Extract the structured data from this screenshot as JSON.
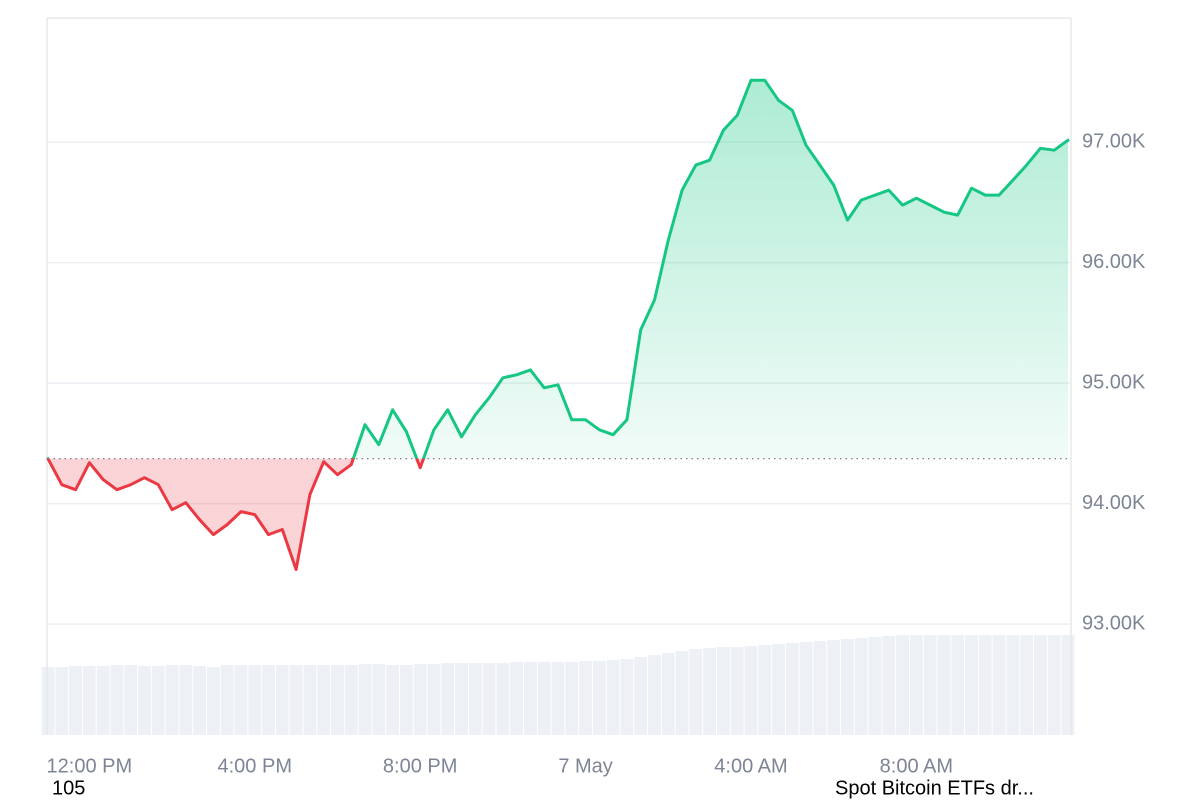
{
  "chart_data": {
    "type": "line",
    "categories": [
      null,
      null,
      null,
      "12:00 PM",
      null,
      null,
      null,
      null,
      null,
      null,
      null,
      null,
      null,
      null,
      null,
      "4:00 PM",
      null,
      null,
      null,
      null,
      null,
      null,
      null,
      null,
      null,
      null,
      null,
      "8:00 PM",
      null,
      null,
      null,
      null,
      null,
      null,
      null,
      null,
      null,
      null,
      null,
      "7 May",
      null,
      null,
      null,
      null,
      null,
      null,
      null,
      null,
      null,
      null,
      null,
      "4:00 AM",
      null,
      null,
      null,
      null,
      null,
      null,
      null,
      null,
      null,
      null,
      null,
      "8:00 AM",
      null,
      null,
      null,
      null,
      null,
      null,
      null,
      null,
      null,
      null,
      null
    ],
    "values": [
      94373,
      94157,
      94116,
      94340,
      94200,
      94116,
      94157,
      94215,
      94157,
      93950,
      94008,
      93867,
      93743,
      93826,
      93934,
      93909,
      93743,
      93785,
      93453,
      94075,
      94348,
      94240,
      94323,
      94655,
      94489,
      94779,
      94597,
      94298,
      94613,
      94779,
      94555,
      94737,
      94878,
      95044,
      95069,
      95110,
      94961,
      94986,
      94696,
      94696,
      94613,
      94572,
      94696,
      95442,
      95690,
      96187,
      96601,
      96809,
      96850,
      97099,
      97222,
      97513,
      97513,
      97347,
      97264,
      96974,
      96809,
      96643,
      96353,
      96519,
      96560,
      96601,
      96477,
      96535,
      96477,
      96419,
      96394,
      96618,
      96560,
      96560,
      96684,
      96809,
      96949,
      96933,
      97016
    ],
    "baseline": 94373,
    "color_up": "#16c784",
    "color_down": "#ea3943",
    "volume": [
      68,
      68,
      69,
      69,
      69,
      70,
      70,
      69,
      69,
      70,
      70,
      69,
      68,
      70,
      70,
      70,
      70,
      70,
      70,
      70,
      70,
      70,
      70,
      71,
      71,
      70,
      70,
      71,
      71,
      72,
      72,
      72,
      72,
      72,
      73,
      73,
      73,
      73,
      73,
      74,
      74,
      75,
      76,
      78,
      80,
      82,
      84,
      86,
      87,
      88,
      88,
      89,
      90,
      91,
      92,
      93,
      94,
      95,
      96,
      97,
      98,
      99,
      100,
      100,
      100,
      100,
      100,
      100,
      100,
      100,
      100,
      100,
      100,
      100,
      100
    ],
    "volume_lim": [
      0,
      100
    ],
    "ylim": [
      92080,
      98030
    ],
    "yticks": [
      {
        "value": 93000,
        "label": "93.00K"
      },
      {
        "value": 94000,
        "label": "94.00K"
      },
      {
        "value": 95000,
        "label": "95.00K"
      },
      {
        "value": 96000,
        "label": "96.00K"
      },
      {
        "value": 97000,
        "label": "97.00K"
      }
    ],
    "grid": true,
    "notes": [
      "105",
      "Spot Bitcoin ETFs dr..."
    ]
  }
}
